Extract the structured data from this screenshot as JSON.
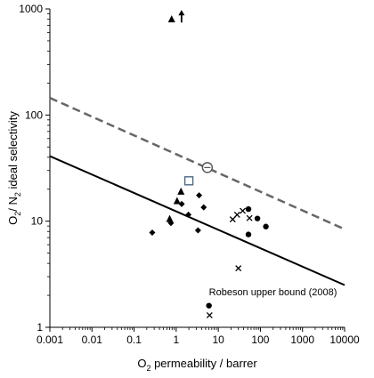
{
  "chart_data": {
    "type": "scatter",
    "title": "",
    "xlabel": {
      "main": "O",
      "sub": "2",
      "rest": " permeability / barrer"
    },
    "ylabel": {
      "a": "O",
      "a_sub": "2",
      "b": "/ N",
      "b_sub": "2",
      "c": " ideal selectivity"
    },
    "x_scale": "log",
    "y_scale": "log",
    "xlim": [
      0.001,
      10000
    ],
    "ylim": [
      1,
      1000
    ],
    "x_tick_values": [
      0.001,
      0.01,
      0.1,
      1,
      10,
      100,
      1000,
      10000
    ],
    "x_tick_labels": [
      "0.001",
      "0.01",
      "0.1",
      "1",
      "10",
      "100",
      "1000",
      "10000"
    ],
    "y_tick_values": [
      1,
      10,
      100,
      1000
    ],
    "y_tick_labels": [
      "1",
      "10",
      "100",
      "1000"
    ],
    "grid": false,
    "lines": [
      {
        "style": "solid",
        "x": [
          0.001,
          10000
        ],
        "y": [
          41,
          2.5
        ]
      },
      {
        "style": "dashed",
        "x": [
          0.001,
          10000
        ],
        "y": [
          145,
          8.4
        ]
      }
    ],
    "annotations": [
      {
        "text": "Robeson upper bound (2008)",
        "x": 6,
        "y": 2.0
      }
    ],
    "series": [
      {
        "marker": "triangle",
        "points": [
          [
            0.78,
            800
          ],
          [
            0.7,
            10.5
          ],
          [
            1.05,
            15.5
          ],
          [
            1.3,
            19
          ]
        ]
      },
      {
        "marker": "diamond",
        "points": [
          [
            0.27,
            7.8
          ],
          [
            0.75,
            9.6
          ],
          [
            1.35,
            14.5
          ],
          [
            1.95,
            11.5
          ],
          [
            3.5,
            17.5
          ],
          [
            4.5,
            13.5
          ],
          [
            3.3,
            8.2
          ]
        ]
      },
      {
        "marker": "x",
        "points": [
          [
            22,
            10.4
          ],
          [
            28,
            11.5
          ],
          [
            38,
            12.5
          ],
          [
            55,
            10.7
          ],
          [
            30,
            3.6
          ],
          [
            6.2,
            1.3
          ]
        ]
      },
      {
        "marker": "circle",
        "points": [
          [
            52,
            13
          ],
          [
            85,
            10.6
          ],
          [
            135,
            8.9
          ],
          [
            52,
            7.5
          ],
          [
            6.0,
            1.6
          ]
        ]
      },
      {
        "marker": "open-square",
        "points": [
          [
            2.0,
            24
          ]
        ]
      },
      {
        "marker": "open-circle",
        "points": [
          [
            5.5,
            32
          ]
        ]
      }
    ],
    "arrow": {
      "x": 1.0,
      "y": 820,
      "direction": "up"
    },
    "colors": {
      "axis": "#000000",
      "solid_line": "#000000",
      "dashed_line": "#666666",
      "open_square": "#4a6a86",
      "open_circle": "#555555"
    }
  }
}
